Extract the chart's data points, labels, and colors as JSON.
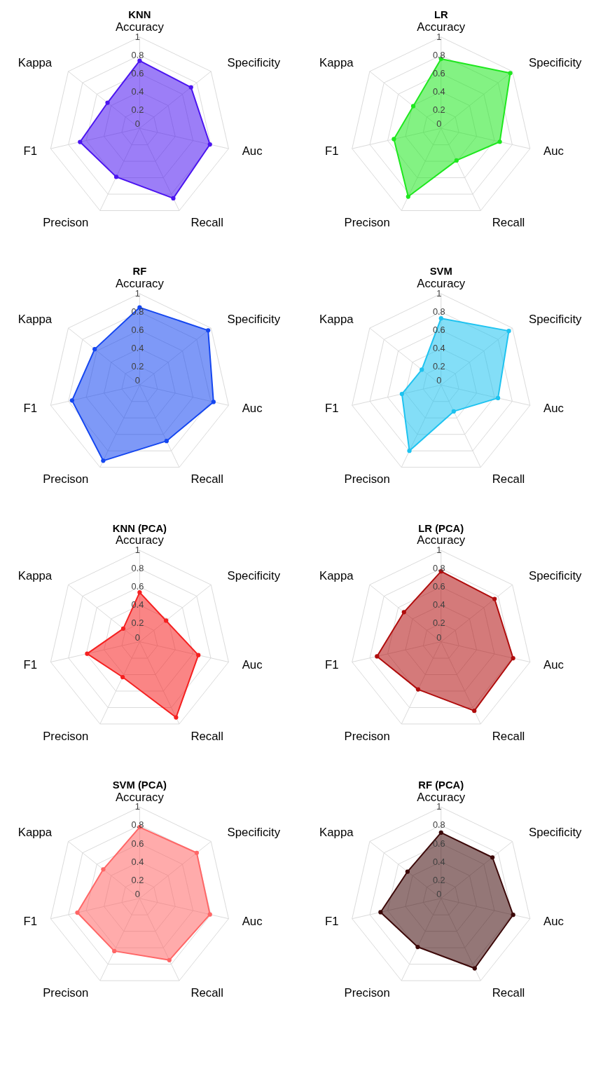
{
  "chart_data": [
    {
      "type": "radar",
      "title": "KNN",
      "categories": [
        "Accuracy",
        "Specificity",
        "Auc",
        "Recall",
        "Precison",
        "F1",
        "Kappa"
      ],
      "ylim": [
        0,
        1
      ],
      "yticks": [
        0,
        0.2,
        0.4,
        0.6,
        0.8,
        1
      ],
      "grid": true,
      "marker": "circle",
      "series": [
        {
          "color": "#4b14f0",
          "values": [
            0.74,
            0.72,
            0.79,
            0.85,
            0.59,
            0.67,
            0.45
          ]
        }
      ]
    },
    {
      "type": "radar",
      "title": "LR",
      "categories": [
        "Accuracy",
        "Specificity",
        "Auc",
        "Recall",
        "Precison",
        "F1",
        "Kappa"
      ],
      "ylim": [
        0,
        1
      ],
      "yticks": [
        0,
        0.2,
        0.4,
        0.6,
        0.8,
        1
      ],
      "grid": true,
      "marker": "circle",
      "series": [
        {
          "color": "#1ee81e",
          "values": [
            0.76,
            0.97,
            0.66,
            0.39,
            0.83,
            0.53,
            0.39
          ]
        }
      ]
    },
    {
      "type": "radar",
      "title": "RF",
      "categories": [
        "Accuracy",
        "Specificity",
        "Auc",
        "Recall",
        "Precison",
        "F1",
        "Kappa"
      ],
      "ylim": [
        0,
        1
      ],
      "yticks": [
        0,
        0.2,
        0.4,
        0.6,
        0.8,
        1
      ],
      "grid": true,
      "marker": "circle",
      "series": [
        {
          "color": "#1446f0",
          "values": [
            0.85,
            0.96,
            0.83,
            0.68,
            0.92,
            0.76,
            0.63
          ]
        }
      ]
    },
    {
      "type": "radar",
      "title": "SVM",
      "categories": [
        "Accuracy",
        "Specificity",
        "Auc",
        "Recall",
        "Precison",
        "F1",
        "Kappa"
      ],
      "ylim": [
        0,
        1
      ],
      "yticks": [
        0,
        0.2,
        0.4,
        0.6,
        0.8,
        1
      ],
      "grid": true,
      "marker": "circle",
      "series": [
        {
          "color": "#1ec3f0",
          "values": [
            0.73,
            0.95,
            0.64,
            0.32,
            0.8,
            0.44,
            0.27
          ]
        }
      ]
    },
    {
      "type": "radar",
      "title": "KNN (PCA)",
      "categories": [
        "Accuracy",
        "Specificity",
        "Auc",
        "Recall",
        "Precison",
        "F1",
        "Kappa"
      ],
      "ylim": [
        0,
        1
      ],
      "yticks": [
        0,
        0.2,
        0.4,
        0.6,
        0.8,
        1
      ],
      "grid": true,
      "marker": "circle",
      "series": [
        {
          "color": "#f52020",
          "values": [
            0.54,
            0.37,
            0.66,
            0.92,
            0.43,
            0.59,
            0.23
          ]
        }
      ]
    },
    {
      "type": "radar",
      "title": "LR (PCA)",
      "categories": [
        "Accuracy",
        "Specificity",
        "Auc",
        "Recall",
        "Precison",
        "F1",
        "Kappa"
      ],
      "ylim": [
        0,
        1
      ],
      "yticks": [
        0,
        0.2,
        0.4,
        0.6,
        0.8,
        1
      ],
      "grid": true,
      "marker": "circle",
      "series": [
        {
          "color": "#b00c0c",
          "values": [
            0.77,
            0.75,
            0.81,
            0.84,
            0.58,
            0.72,
            0.52
          ]
        }
      ]
    },
    {
      "type": "radar",
      "title": "SVM (PCA)",
      "categories": [
        "Accuracy",
        "Specificity",
        "Auc",
        "Recall",
        "Precison",
        "F1",
        "Kappa"
      ],
      "ylim": [
        0,
        1
      ],
      "yticks": [
        0,
        0.2,
        0.4,
        0.6,
        0.8,
        1
      ],
      "grid": true,
      "marker": "circle",
      "series": [
        {
          "color": "#ff6666",
          "values": [
            0.78,
            0.8,
            0.79,
            0.75,
            0.64,
            0.7,
            0.51
          ]
        }
      ]
    },
    {
      "type": "radar",
      "title": "RF (PCA)",
      "categories": [
        "Accuracy",
        "Specificity",
        "Auc",
        "Recall",
        "Precison",
        "F1",
        "Kappa"
      ],
      "ylim": [
        0,
        1
      ],
      "yticks": [
        0,
        0.2,
        0.4,
        0.6,
        0.8,
        1
      ],
      "grid": true,
      "marker": "circle",
      "series": [
        {
          "color": "#3c0808",
          "values": [
            0.72,
            0.72,
            0.81,
            0.85,
            0.59,
            0.68,
            0.47
          ]
        }
      ]
    }
  ]
}
